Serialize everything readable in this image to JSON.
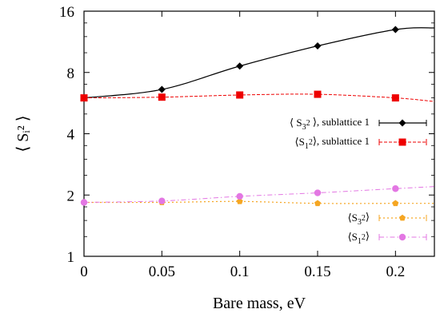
{
  "chart_data": {
    "type": "line",
    "xlabel": "Bare mass, eV",
    "ylabel": "⟨ Sᵢ² ⟩",
    "xlim": [
      0,
      0.225
    ],
    "ylim": [
      1,
      16
    ],
    "yscale": "log2",
    "xticks": [
      0,
      0.05,
      0.1,
      0.15,
      0.2
    ],
    "xtick_labels": [
      "0",
      "0.05",
      "0.1",
      "0.15",
      "0.2"
    ],
    "yticks": [
      1,
      2,
      4,
      8,
      16
    ],
    "ytick_labels": [
      "1",
      "2",
      "4",
      "8",
      "16"
    ],
    "grid": false,
    "legend_position": "right",
    "series": [
      {
        "name": "⟨ S₃² ⟩, sublattice 1",
        "color": "#000000",
        "marker": "diamond",
        "line": "solid",
        "x": [
          0,
          0.05,
          0.1,
          0.15,
          0.2
        ],
        "values": [
          6.0,
          6.6,
          8.6,
          10.8,
          13.0
        ]
      },
      {
        "name": "⟨S₁²⟩, sublattice 1",
        "color": "#ee0000",
        "marker": "square",
        "line": "dashed",
        "x": [
          0,
          0.05,
          0.1,
          0.15,
          0.2
        ],
        "values": [
          6.0,
          6.05,
          6.2,
          6.25,
          6.0
        ]
      },
      {
        "name": "⟨S₃²⟩",
        "color": "#f5a623",
        "marker": "pentagon",
        "line": "dotted",
        "x": [
          0,
          0.05,
          0.1,
          0.15,
          0.2
        ],
        "values": [
          1.84,
          1.84,
          1.86,
          1.82,
          1.82
        ]
      },
      {
        "name": "⟨S₁²⟩",
        "color": "#e377e3",
        "marker": "circle",
        "line": "dashdot",
        "x": [
          0,
          0.05,
          0.1,
          0.15,
          0.2
        ],
        "values": [
          1.84,
          1.87,
          1.97,
          2.05,
          2.15
        ]
      }
    ]
  }
}
